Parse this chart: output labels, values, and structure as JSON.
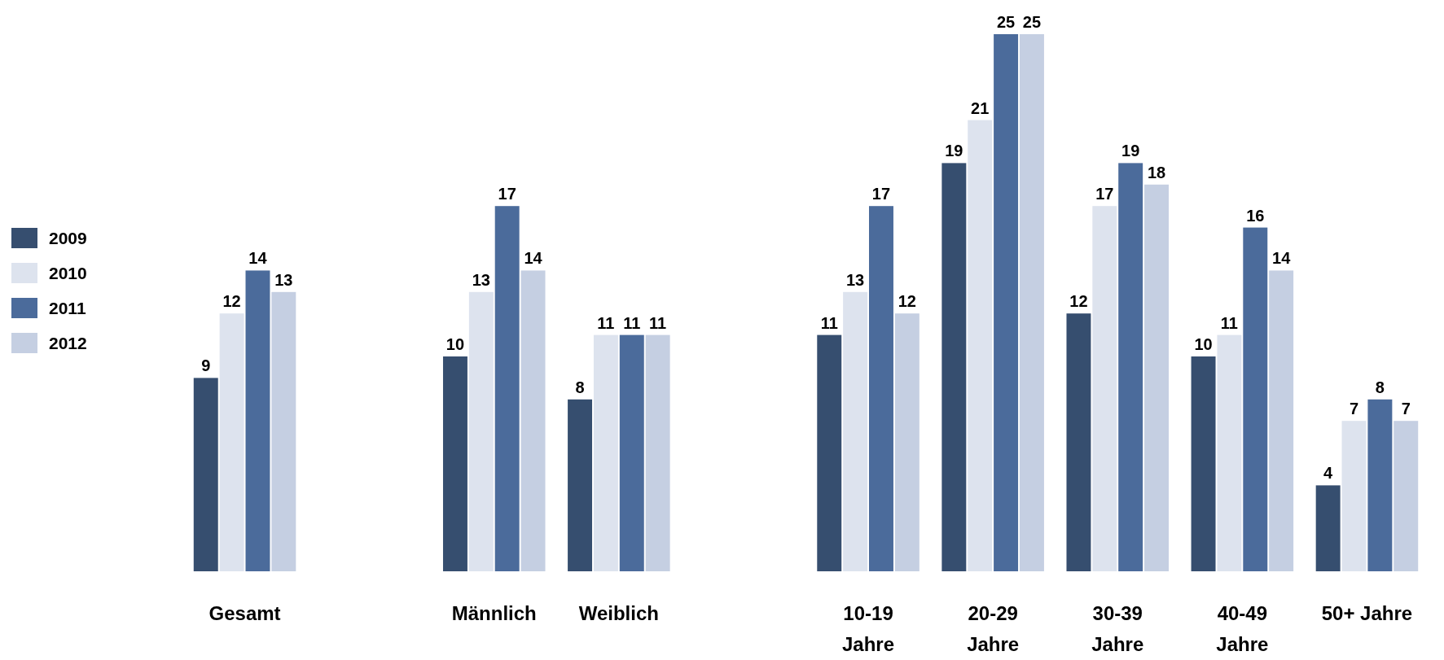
{
  "chart_data": {
    "type": "bar",
    "categories": [
      "Gesamt",
      null,
      "Männlich",
      "Weiblich",
      null,
      "10-19\nJahre",
      "20-29\nJahre",
      "30-39\nJahre",
      "40-49\nJahre",
      "50+ Jahre"
    ],
    "series": [
      {
        "name": "2009",
        "color": "#364e6f",
        "values": [
          9,
          null,
          10,
          8,
          null,
          11,
          19,
          12,
          10,
          4
        ]
      },
      {
        "name": "2010",
        "color": "#dde3ee",
        "values": [
          12,
          null,
          13,
          11,
          null,
          13,
          21,
          17,
          11,
          7
        ]
      },
      {
        "name": "2011",
        "color": "#4b6b9b",
        "values": [
          14,
          null,
          17,
          11,
          null,
          17,
          25,
          19,
          16,
          8
        ]
      },
      {
        "name": "2012",
        "color": "#c5cfe2",
        "values": [
          13,
          null,
          14,
          11,
          null,
          12,
          25,
          18,
          14,
          7
        ]
      }
    ],
    "ylim": [
      0,
      25
    ],
    "data_labels": true,
    "legend": "left"
  }
}
